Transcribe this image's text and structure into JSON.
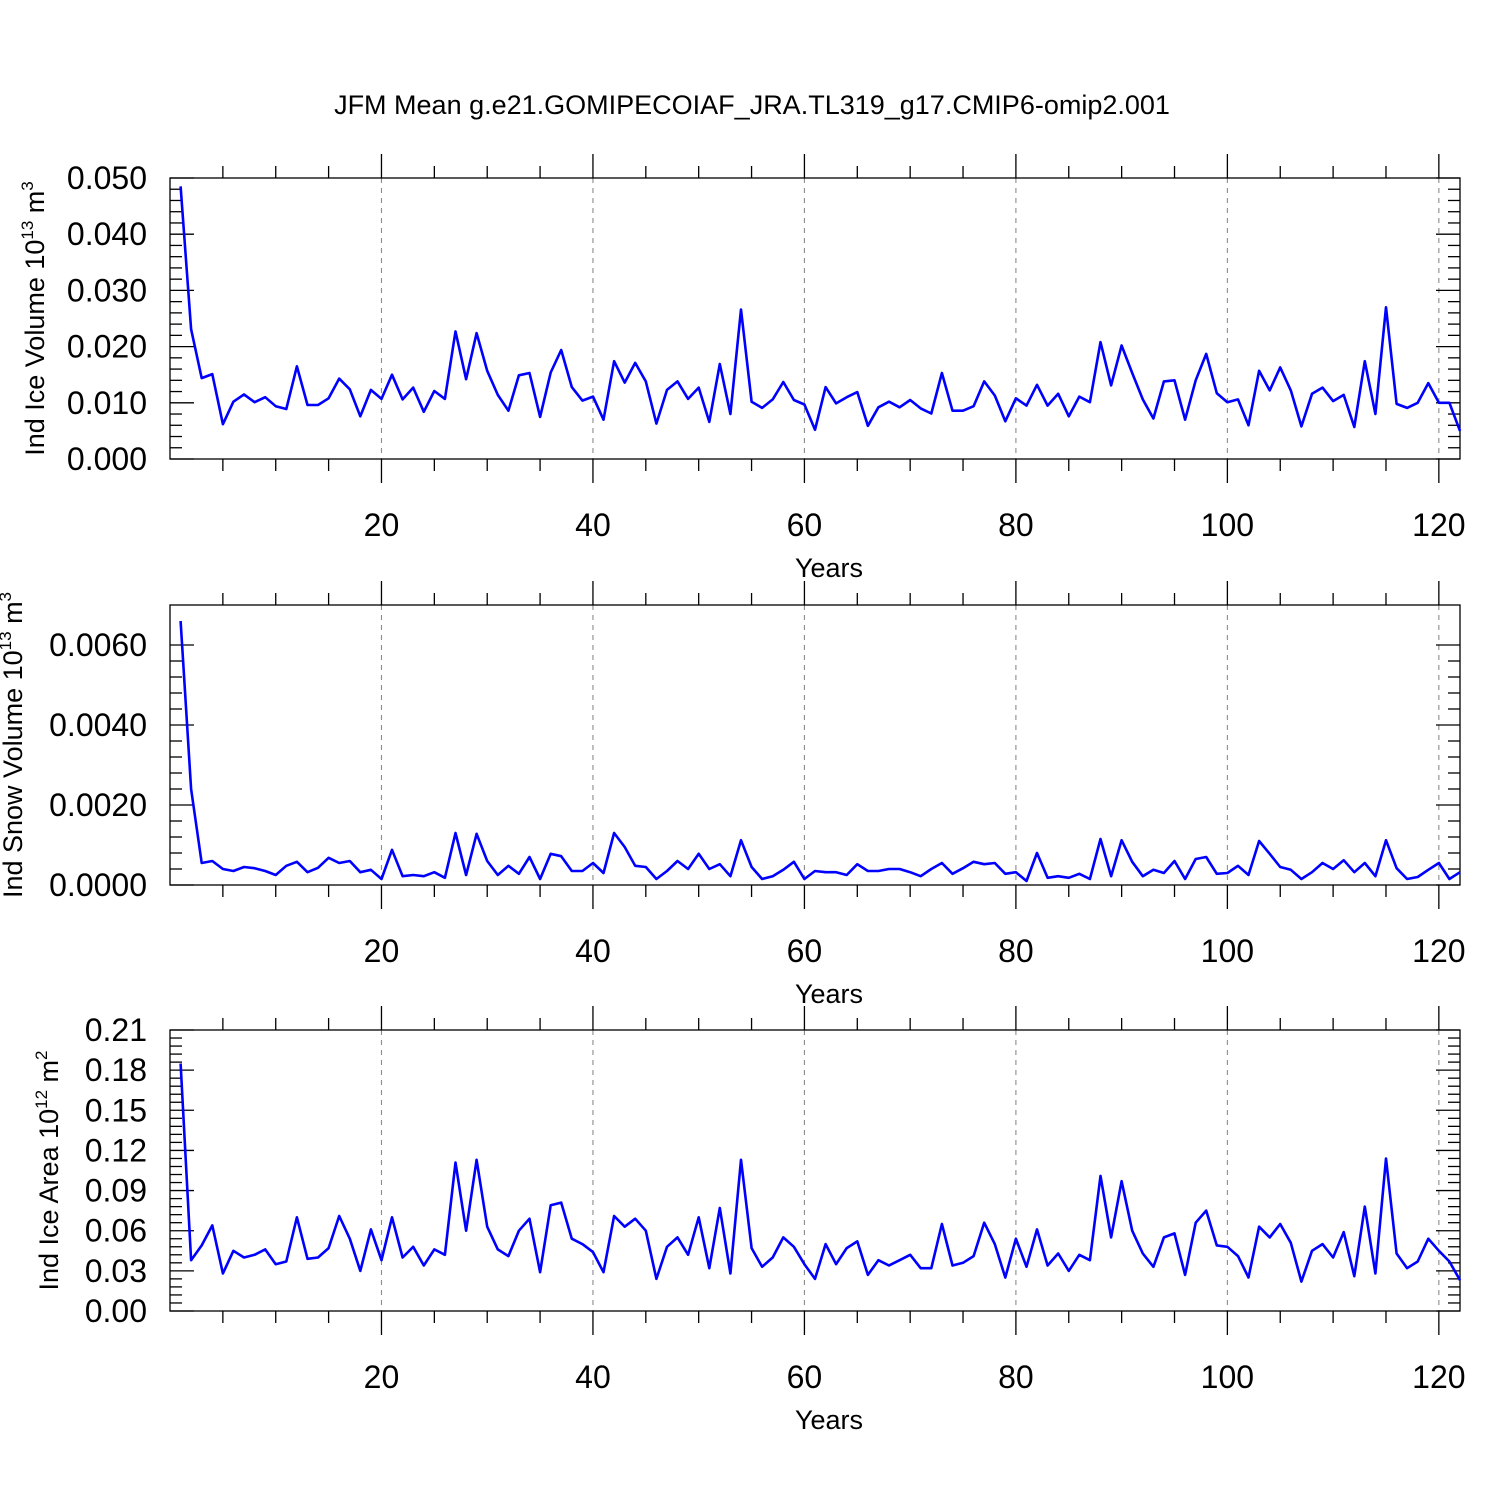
{
  "title": "JFM Mean g.e21.GOMIPECOIAF_JRA.TL319_g17.CMIP6-omip2.001",
  "colors": {
    "line": "#0000ff",
    "grid": "#8c8c8c",
    "frame": "#000000"
  },
  "chart_data": [
    {
      "type": "line",
      "xlabel": "Years",
      "ylabel": {
        "base": "Ind Ice Volume 10",
        "exp": "13",
        "unit": " m",
        "unit_exp": "3"
      },
      "xlim": [
        0,
        122
      ],
      "ylim": [
        0,
        0.05
      ],
      "xticks": [
        20,
        40,
        60,
        80,
        100,
        120
      ],
      "xtick_labels": [
        "20",
        "40",
        "60",
        "80",
        "100",
        "120"
      ],
      "yticks": [
        0,
        0.01,
        0.02,
        0.03,
        0.04,
        0.05
      ],
      "ytick_labels": [
        "0.000",
        "0.010",
        "0.020",
        "0.030",
        "0.040",
        "0.050"
      ],
      "grid": "vertical dashed at major x ticks",
      "x_start": 1,
      "values": [
        0.0485,
        0.0231,
        0.0144,
        0.0151,
        0.0062,
        0.0102,
        0.0115,
        0.0101,
        0.011,
        0.0094,
        0.0089,
        0.0165,
        0.0096,
        0.0096,
        0.0108,
        0.0143,
        0.0124,
        0.0076,
        0.0123,
        0.0107,
        0.015,
        0.0106,
        0.0127,
        0.0084,
        0.0121,
        0.0107,
        0.0227,
        0.0142,
        0.0224,
        0.0157,
        0.0114,
        0.0086,
        0.0149,
        0.0153,
        0.0075,
        0.0154,
        0.0194,
        0.0128,
        0.0104,
        0.0111,
        0.007,
        0.0174,
        0.0136,
        0.0171,
        0.0138,
        0.0063,
        0.0123,
        0.0138,
        0.0107,
        0.0127,
        0.0066,
        0.0169,
        0.008,
        0.0266,
        0.0102,
        0.0091,
        0.0106,
        0.0137,
        0.0105,
        0.0097,
        0.0052,
        0.0128,
        0.0099,
        0.011,
        0.0119,
        0.0059,
        0.0092,
        0.0102,
        0.0092,
        0.0105,
        0.009,
        0.0081,
        0.0153,
        0.0086,
        0.0086,
        0.0094,
        0.0138,
        0.0113,
        0.0067,
        0.0108,
        0.0095,
        0.0132,
        0.0095,
        0.0116,
        0.0076,
        0.0111,
        0.0101,
        0.0208,
        0.0131,
        0.0202,
        0.0153,
        0.0106,
        0.0072,
        0.0138,
        0.014,
        0.007,
        0.014,
        0.0187,
        0.0117,
        0.0101,
        0.0106,
        0.006,
        0.0157,
        0.0122,
        0.0163,
        0.0122,
        0.0058,
        0.0116,
        0.0127,
        0.0103,
        0.0114,
        0.0057,
        0.0174,
        0.008,
        0.027,
        0.0098,
        0.0091,
        0.01,
        0.0135,
        0.01,
        0.01,
        0.005
      ]
    },
    {
      "type": "line",
      "xlabel": "Years",
      "ylabel": {
        "base": "Ind Snow Volume 10",
        "exp": "13",
        "unit": " m",
        "unit_exp": "3"
      },
      "xlim": [
        0,
        122
      ],
      "ylim": [
        0,
        0.007
      ],
      "xticks": [
        20,
        40,
        60,
        80,
        100,
        120
      ],
      "xtick_labels": [
        "20",
        "40",
        "60",
        "80",
        "100",
        "120"
      ],
      "yticks": [
        0,
        0.002,
        0.004,
        0.006
      ],
      "ytick_labels": [
        "0.0000",
        "0.0020",
        "0.0040",
        "0.0060"
      ],
      "grid": "vertical dashed at major x ticks",
      "x_start": 1,
      "values": [
        0.0066,
        0.0024,
        0.00055,
        0.0006,
        0.0004,
        0.00035,
        0.00045,
        0.00042,
        0.00035,
        0.00025,
        0.00048,
        0.00058,
        0.00032,
        0.00043,
        0.00068,
        0.00055,
        0.0006,
        0.00032,
        0.00038,
        0.00015,
        0.00088,
        0.00022,
        0.00025,
        0.00022,
        0.00032,
        0.00018,
        0.0013,
        0.00025,
        0.00128,
        0.0006,
        0.00025,
        0.00048,
        0.00028,
        0.0007,
        0.00015,
        0.00078,
        0.00072,
        0.00035,
        0.00035,
        0.00055,
        0.0003,
        0.0013,
        0.00095,
        0.00048,
        0.00045,
        0.00015,
        0.00035,
        0.0006,
        0.0004,
        0.00078,
        0.0004,
        0.00052,
        0.00022,
        0.00112,
        0.00045,
        0.00015,
        0.00022,
        0.00038,
        0.00058,
        0.00015,
        0.00035,
        0.00032,
        0.00032,
        0.00025,
        0.00052,
        0.00035,
        0.00035,
        0.0004,
        0.0004,
        0.00032,
        0.00022,
        0.0004,
        0.00055,
        0.00028,
        0.00042,
        0.00058,
        0.00052,
        0.00055,
        0.00028,
        0.00032,
        0.0001,
        0.0008,
        0.00018,
        0.00022,
        0.00018,
        0.00028,
        0.00015,
        0.00115,
        0.00022,
        0.00112,
        0.00058,
        0.00022,
        0.00038,
        0.0003,
        0.0006,
        0.00015,
        0.00065,
        0.0007,
        0.00028,
        0.0003,
        0.00048,
        0.00025,
        0.0011,
        0.00078,
        0.00045,
        0.00038,
        0.00015,
        0.00032,
        0.00055,
        0.0004,
        0.00062,
        0.00032,
        0.00055,
        0.00022,
        0.00112,
        0.00042,
        0.00015,
        0.0002,
        0.00038,
        0.00055,
        0.00015,
        0.00032
      ]
    },
    {
      "type": "line",
      "xlabel": "Years",
      "ylabel": {
        "base": "Ind Ice Area 10",
        "exp": "12",
        "unit": " m",
        "unit_exp": "2"
      },
      "xlim": [
        0,
        122
      ],
      "ylim": [
        0,
        0.21
      ],
      "xticks": [
        20,
        40,
        60,
        80,
        100,
        120
      ],
      "xtick_labels": [
        "20",
        "40",
        "60",
        "80",
        "100",
        "120"
      ],
      "yticks": [
        0,
        0.03,
        0.06,
        0.09,
        0.12,
        0.15,
        0.18,
        0.21
      ],
      "ytick_labels": [
        "0.00",
        "0.03",
        "0.06",
        "0.09",
        "0.12",
        "0.15",
        "0.18",
        "0.21"
      ],
      "grid": "vertical dashed at major x ticks",
      "x_start": 1,
      "values": [
        0.185,
        0.038,
        0.049,
        0.064,
        0.028,
        0.045,
        0.04,
        0.042,
        0.046,
        0.035,
        0.037,
        0.07,
        0.039,
        0.04,
        0.047,
        0.071,
        0.054,
        0.03,
        0.061,
        0.038,
        0.07,
        0.04,
        0.048,
        0.034,
        0.046,
        0.042,
        0.111,
        0.06,
        0.113,
        0.063,
        0.046,
        0.041,
        0.06,
        0.069,
        0.029,
        0.079,
        0.081,
        0.054,
        0.05,
        0.044,
        0.029,
        0.071,
        0.063,
        0.069,
        0.06,
        0.024,
        0.048,
        0.055,
        0.042,
        0.07,
        0.032,
        0.077,
        0.028,
        0.113,
        0.047,
        0.033,
        0.04,
        0.055,
        0.048,
        0.035,
        0.024,
        0.05,
        0.035,
        0.047,
        0.052,
        0.027,
        0.038,
        0.034,
        0.038,
        0.042,
        0.032,
        0.032,
        0.065,
        0.034,
        0.036,
        0.041,
        0.066,
        0.05,
        0.025,
        0.054,
        0.033,
        0.061,
        0.034,
        0.043,
        0.03,
        0.042,
        0.038,
        0.101,
        0.055,
        0.097,
        0.06,
        0.043,
        0.033,
        0.055,
        0.058,
        0.027,
        0.066,
        0.075,
        0.049,
        0.048,
        0.041,
        0.025,
        0.063,
        0.055,
        0.065,
        0.051,
        0.022,
        0.045,
        0.05,
        0.04,
        0.059,
        0.026,
        0.078,
        0.028,
        0.114,
        0.043,
        0.032,
        0.037,
        0.054,
        0.045,
        0.037,
        0.023
      ]
    }
  ]
}
